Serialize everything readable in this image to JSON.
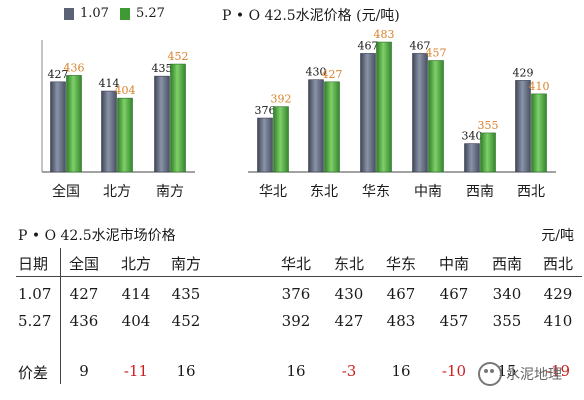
{
  "chart_data": {
    "type": "bar",
    "title": "P • O 42.5水泥价格 (元/吨)",
    "categories": [
      "全国",
      "北方",
      "南方",
      "华北",
      "东北",
      "华东",
      "中南",
      "西南",
      "西北"
    ],
    "series": [
      {
        "name": "1.07",
        "color": "#5b6275",
        "values": [
          427,
          414,
          435,
          376,
          430,
          467,
          467,
          340,
          429
        ]
      },
      {
        "name": "5.27",
        "color": "#3f9a36",
        "values": [
          436,
          404,
          452,
          392,
          427,
          483,
          457,
          355,
          410
        ]
      }
    ],
    "ylim": [
      300,
      500
    ],
    "data_label_colors": {
      "1.07": "#1a1a1a",
      "5.27": "#d9822b"
    },
    "legend_position": "top-left",
    "grid": false
  },
  "table": {
    "title": "P • O 42.5水泥市场价格",
    "unit": "元/吨",
    "header_label": "日期",
    "columns": [
      "全国",
      "北方",
      "南方",
      "华北",
      "东北",
      "华东",
      "中南",
      "西南",
      "西北"
    ],
    "rows": [
      {
        "label": "1.07",
        "values": [
          "427",
          "414",
          "435",
          "376",
          "430",
          "467",
          "467",
          "340",
          "429"
        ]
      },
      {
        "label": "5.27",
        "values": [
          "436",
          "404",
          "452",
          "392",
          "427",
          "483",
          "457",
          "355",
          "410"
        ]
      }
    ],
    "diff": {
      "label": "价差",
      "values": [
        "9",
        "-11",
        "16",
        "16",
        "-3",
        "16",
        "-10",
        "15",
        "-19"
      ]
    },
    "negative_color": "#cc1f1f"
  },
  "watermark": {
    "text": "水泥地理",
    "icon": "wechat-icon"
  }
}
